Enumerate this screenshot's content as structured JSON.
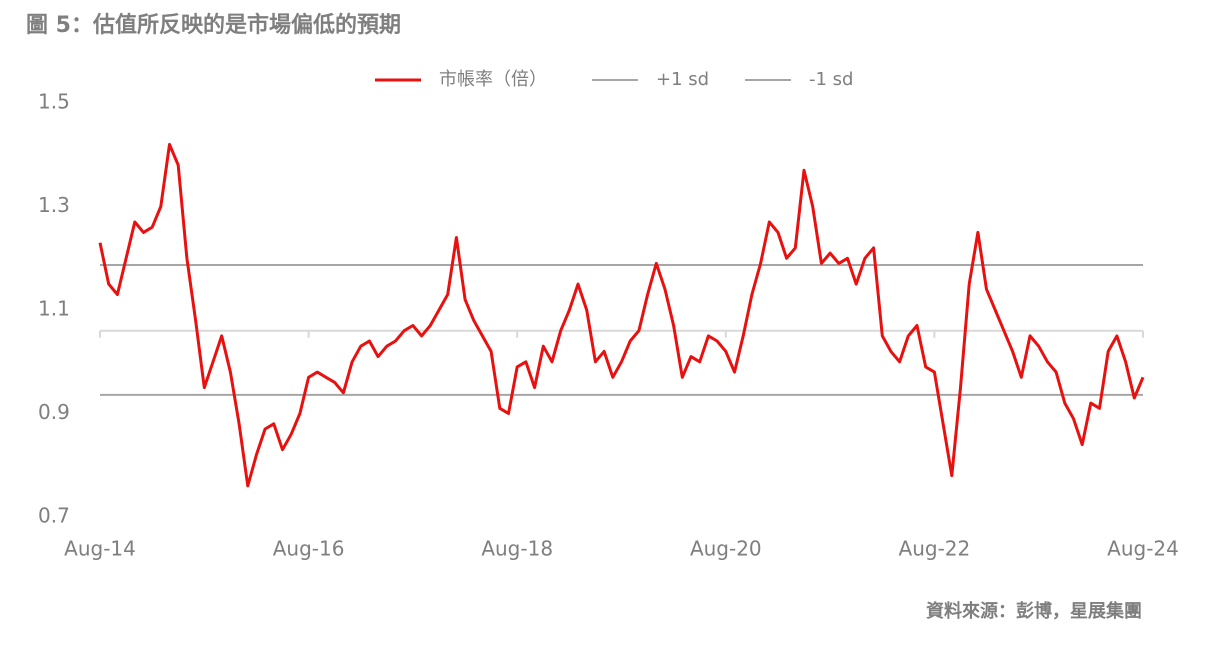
{
  "chart_data": {
    "type": "line",
    "title": "圖 5：估值所反映的是市場偏低的預期",
    "source": "資料來源：彭博，星展集團",
    "x": [
      "Aug-14",
      "Sep-14",
      "Oct-14",
      "Nov-14",
      "Dec-14",
      "Jan-15",
      "Feb-15",
      "Mar-15",
      "Apr-15",
      "May-15",
      "Jun-15",
      "Jul-15",
      "Aug-15",
      "Sep-15",
      "Oct-15",
      "Nov-15",
      "Dec-15",
      "Jan-16",
      "Feb-16",
      "Mar-16",
      "Apr-16",
      "May-16",
      "Jun-16",
      "Jul-16",
      "Aug-16",
      "Sep-16",
      "Oct-16",
      "Nov-16",
      "Dec-16",
      "Jan-17",
      "Feb-17",
      "Mar-17",
      "Apr-17",
      "May-17",
      "Jun-17",
      "Jul-17",
      "Aug-17",
      "Sep-17",
      "Oct-17",
      "Nov-17",
      "Dec-17",
      "Jan-18",
      "Feb-18",
      "Mar-18",
      "Apr-18",
      "May-18",
      "Jun-18",
      "Jul-18",
      "Aug-18",
      "Sep-18",
      "Oct-18",
      "Nov-18",
      "Dec-18",
      "Jan-19",
      "Feb-19",
      "Mar-19",
      "Apr-19",
      "May-19",
      "Jun-19",
      "Jul-19",
      "Aug-19",
      "Sep-19",
      "Oct-19",
      "Nov-19",
      "Dec-19",
      "Jan-20",
      "Feb-20",
      "Mar-20",
      "Apr-20",
      "May-20",
      "Jun-20",
      "Jul-20",
      "Aug-20",
      "Sep-20",
      "Oct-20",
      "Nov-20",
      "Dec-20",
      "Jan-21",
      "Feb-21",
      "Mar-21",
      "Apr-21",
      "May-21",
      "Jun-21",
      "Jul-21",
      "Aug-21",
      "Sep-21",
      "Oct-21",
      "Nov-21",
      "Dec-21",
      "Jan-22",
      "Feb-22",
      "Mar-22",
      "Apr-22",
      "May-22",
      "Jun-22",
      "Jul-22",
      "Aug-22",
      "Sep-22",
      "Oct-22",
      "Nov-22",
      "Dec-22",
      "Jan-23",
      "Feb-23",
      "Mar-23",
      "Apr-23",
      "May-23",
      "Jun-23",
      "Jul-23",
      "Aug-23",
      "Sep-23",
      "Oct-23",
      "Nov-23",
      "Dec-23",
      "Jan-24",
      "Feb-24",
      "Mar-24",
      "Apr-24",
      "May-24",
      "Jun-24",
      "Jul-24",
      "Aug-24"
    ],
    "series": [
      {
        "name": "市帳率（倍）",
        "color": "#e8110f",
        "values": [
          1.23,
          1.15,
          1.13,
          1.2,
          1.27,
          1.25,
          1.26,
          1.3,
          1.42,
          1.38,
          1.2,
          1.08,
          0.95,
          1.0,
          1.05,
          0.98,
          0.88,
          0.76,
          0.82,
          0.87,
          0.88,
          0.83,
          0.86,
          0.9,
          0.97,
          0.98,
          0.97,
          0.96,
          0.94,
          1.0,
          1.03,
          1.04,
          1.01,
          1.03,
          1.04,
          1.06,
          1.07,
          1.05,
          1.07,
          1.1,
          1.13,
          1.24,
          1.12,
          1.08,
          1.05,
          1.02,
          0.91,
          0.9,
          0.99,
          1.0,
          0.95,
          1.03,
          1.0,
          1.06,
          1.1,
          1.15,
          1.1,
          1.0,
          1.02,
          0.97,
          1.0,
          1.04,
          1.06,
          1.13,
          1.19,
          1.14,
          1.07,
          0.97,
          1.01,
          1.0,
          1.05,
          1.04,
          1.02,
          0.98,
          1.05,
          1.13,
          1.19,
          1.27,
          1.25,
          1.2,
          1.22,
          1.37,
          1.3,
          1.19,
          1.21,
          1.19,
          1.2,
          1.15,
          1.2,
          1.22,
          1.05,
          1.02,
          1.0,
          1.05,
          1.07,
          0.99,
          0.98,
          0.88,
          0.78,
          0.95,
          1.15,
          1.25,
          1.14,
          1.1,
          1.06,
          1.02,
          0.97,
          1.05,
          1.03,
          1.0,
          0.98,
          0.92,
          0.89,
          0.84,
          0.92,
          0.91,
          1.02,
          1.05,
          1.0,
          0.93,
          0.97
        ]
      }
    ],
    "bands": [
      {
        "name": "+1 sd",
        "color": "#a6a6a6",
        "value": 1.187
      },
      {
        "name": "-1 sd",
        "color": "#a6a6a6",
        "value": 0.936
      }
    ],
    "xaxis_at": 1.06,
    "xticks": [
      "Aug-14",
      "Aug-16",
      "Aug-18",
      "Aug-20",
      "Aug-22",
      "Aug-24"
    ],
    "ylim": [
      0.7,
      1.5
    ],
    "yticks": [
      0.7,
      0.9,
      1.1,
      1.3,
      1.5
    ],
    "grid": false,
    "legend": "top"
  }
}
